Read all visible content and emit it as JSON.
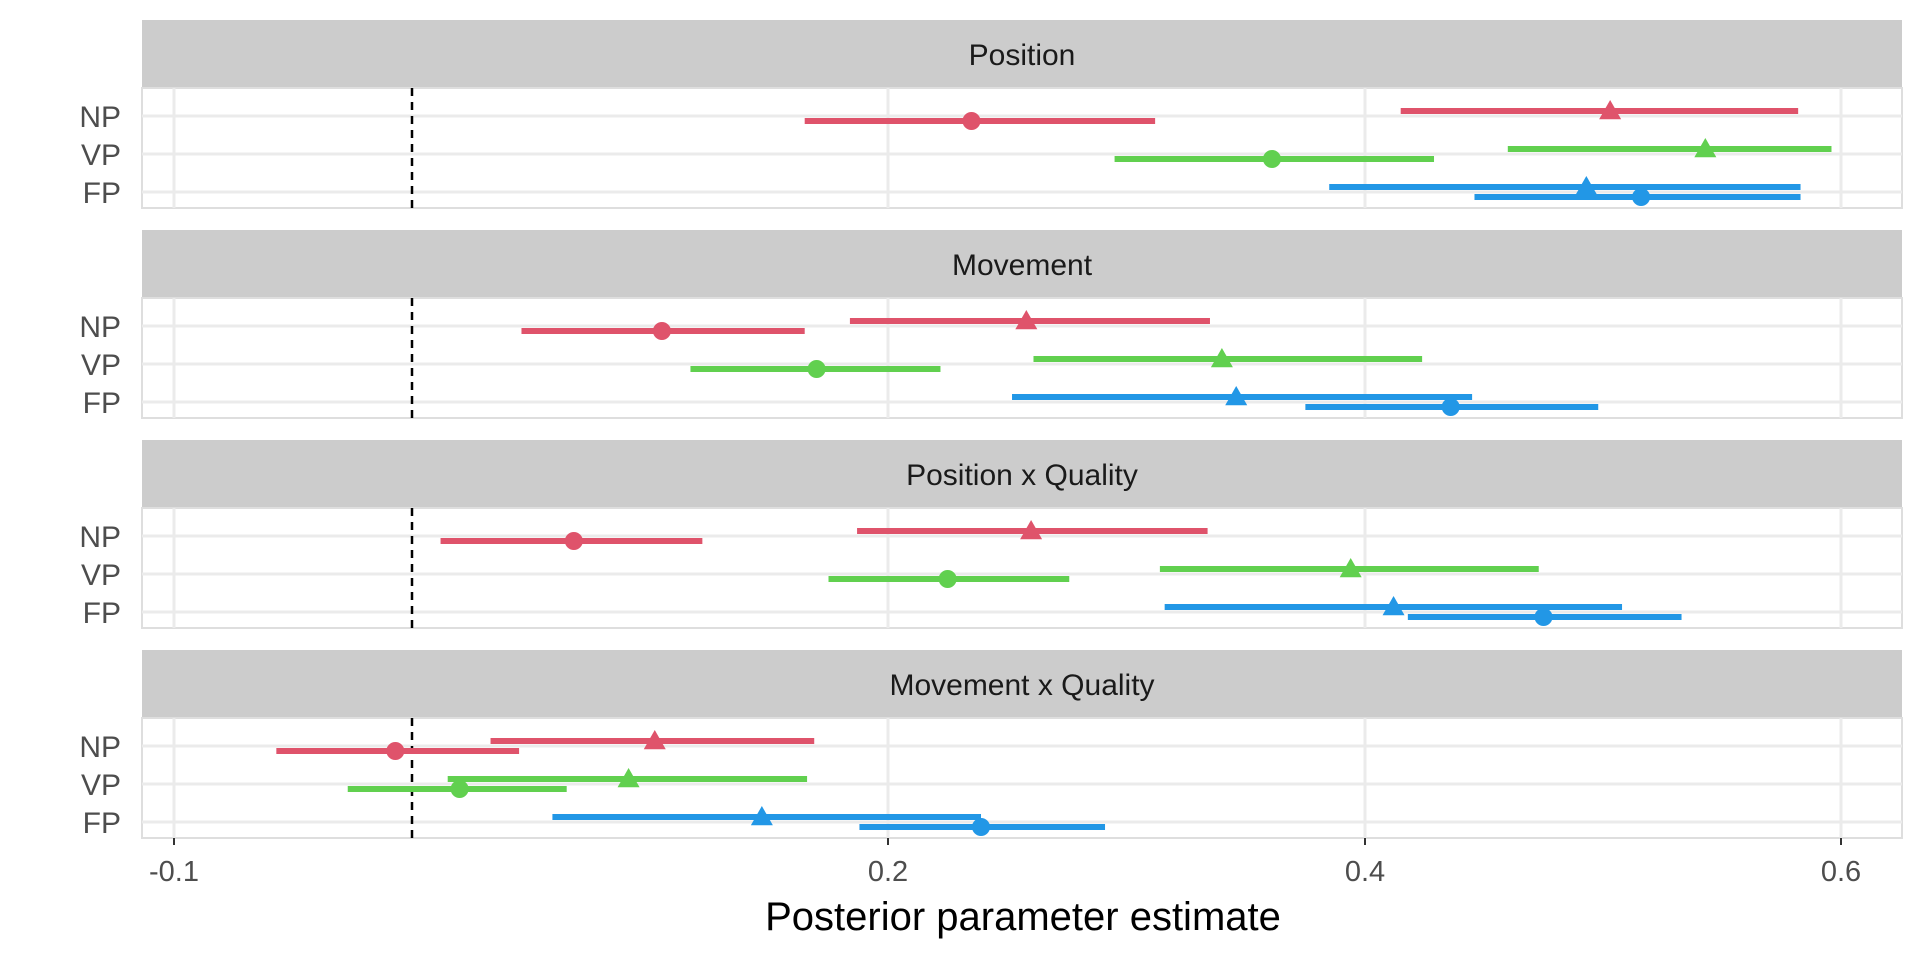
{
  "chart_data": {
    "type": "forest",
    "xlabel": "Posterior parameter estimate",
    "xlim": [
      -0.1,
      0.6
    ],
    "xticks": [
      -0.1,
      0.2,
      0.4,
      0.6
    ],
    "xtick_labels": [
      "-0.1",
      "0.2",
      "0.4",
      "0.6"
    ],
    "reference_line": 0.0,
    "row_labels": [
      "NP",
      "VP",
      "FP"
    ],
    "colors": {
      "NP": "#df536b",
      "VP": "#61d04f",
      "FP": "#2297e6"
    },
    "panels": [
      {
        "title": "Position",
        "estimates": [
          {
            "row": "NP",
            "shape": "triangle",
            "est": 0.503,
            "lo": 0.415,
            "hi": 0.582
          },
          {
            "row": "NP",
            "shape": "circle",
            "est": 0.235,
            "lo": 0.165,
            "hi": 0.312
          },
          {
            "row": "VP",
            "shape": "triangle",
            "est": 0.543,
            "lo": 0.46,
            "hi": 0.596
          },
          {
            "row": "VP",
            "shape": "circle",
            "est": 0.361,
            "lo": 0.295,
            "hi": 0.429
          },
          {
            "row": "FP",
            "shape": "triangle",
            "est": 0.493,
            "lo": 0.385,
            "hi": 0.583
          },
          {
            "row": "FP",
            "shape": "circle",
            "est": 0.516,
            "lo": 0.446,
            "hi": 0.583
          }
        ]
      },
      {
        "title": "Movement",
        "estimates": [
          {
            "row": "NP",
            "shape": "triangle",
            "est": 0.258,
            "lo": 0.184,
            "hi": 0.335
          },
          {
            "row": "NP",
            "shape": "circle",
            "est": 0.105,
            "lo": 0.046,
            "hi": 0.165
          },
          {
            "row": "VP",
            "shape": "triangle",
            "est": 0.34,
            "lo": 0.261,
            "hi": 0.424
          },
          {
            "row": "VP",
            "shape": "circle",
            "est": 0.17,
            "lo": 0.117,
            "hi": 0.222
          },
          {
            "row": "FP",
            "shape": "triangle",
            "est": 0.346,
            "lo": 0.252,
            "hi": 0.445
          },
          {
            "row": "FP",
            "shape": "circle",
            "est": 0.436,
            "lo": 0.375,
            "hi": 0.498
          }
        ]
      },
      {
        "title": "Position x Quality",
        "estimates": [
          {
            "row": "NP",
            "shape": "triangle",
            "est": 0.26,
            "lo": 0.187,
            "hi": 0.334
          },
          {
            "row": "NP",
            "shape": "circle",
            "est": 0.068,
            "lo": 0.012,
            "hi": 0.122
          },
          {
            "row": "VP",
            "shape": "triangle",
            "est": 0.394,
            "lo": 0.314,
            "hi": 0.473
          },
          {
            "row": "VP",
            "shape": "circle",
            "est": 0.225,
            "lo": 0.175,
            "hi": 0.276
          },
          {
            "row": "FP",
            "shape": "triangle",
            "est": 0.412,
            "lo": 0.316,
            "hi": 0.508
          },
          {
            "row": "FP",
            "shape": "circle",
            "est": 0.475,
            "lo": 0.418,
            "hi": 0.533
          }
        ]
      },
      {
        "title": "Movement x Quality",
        "estimates": [
          {
            "row": "NP",
            "shape": "triangle",
            "est": 0.102,
            "lo": 0.033,
            "hi": 0.169
          },
          {
            "row": "NP",
            "shape": "circle",
            "est": -0.007,
            "lo": -0.057,
            "hi": 0.045
          },
          {
            "row": "VP",
            "shape": "triangle",
            "est": 0.091,
            "lo": 0.015,
            "hi": 0.166
          },
          {
            "row": "VP",
            "shape": "circle",
            "est": 0.02,
            "lo": -0.027,
            "hi": 0.065
          },
          {
            "row": "FP",
            "shape": "triangle",
            "est": 0.147,
            "lo": 0.059,
            "hi": 0.239
          },
          {
            "row": "FP",
            "shape": "circle",
            "est": 0.239,
            "lo": 0.188,
            "hi": 0.291
          }
        ]
      }
    ]
  }
}
